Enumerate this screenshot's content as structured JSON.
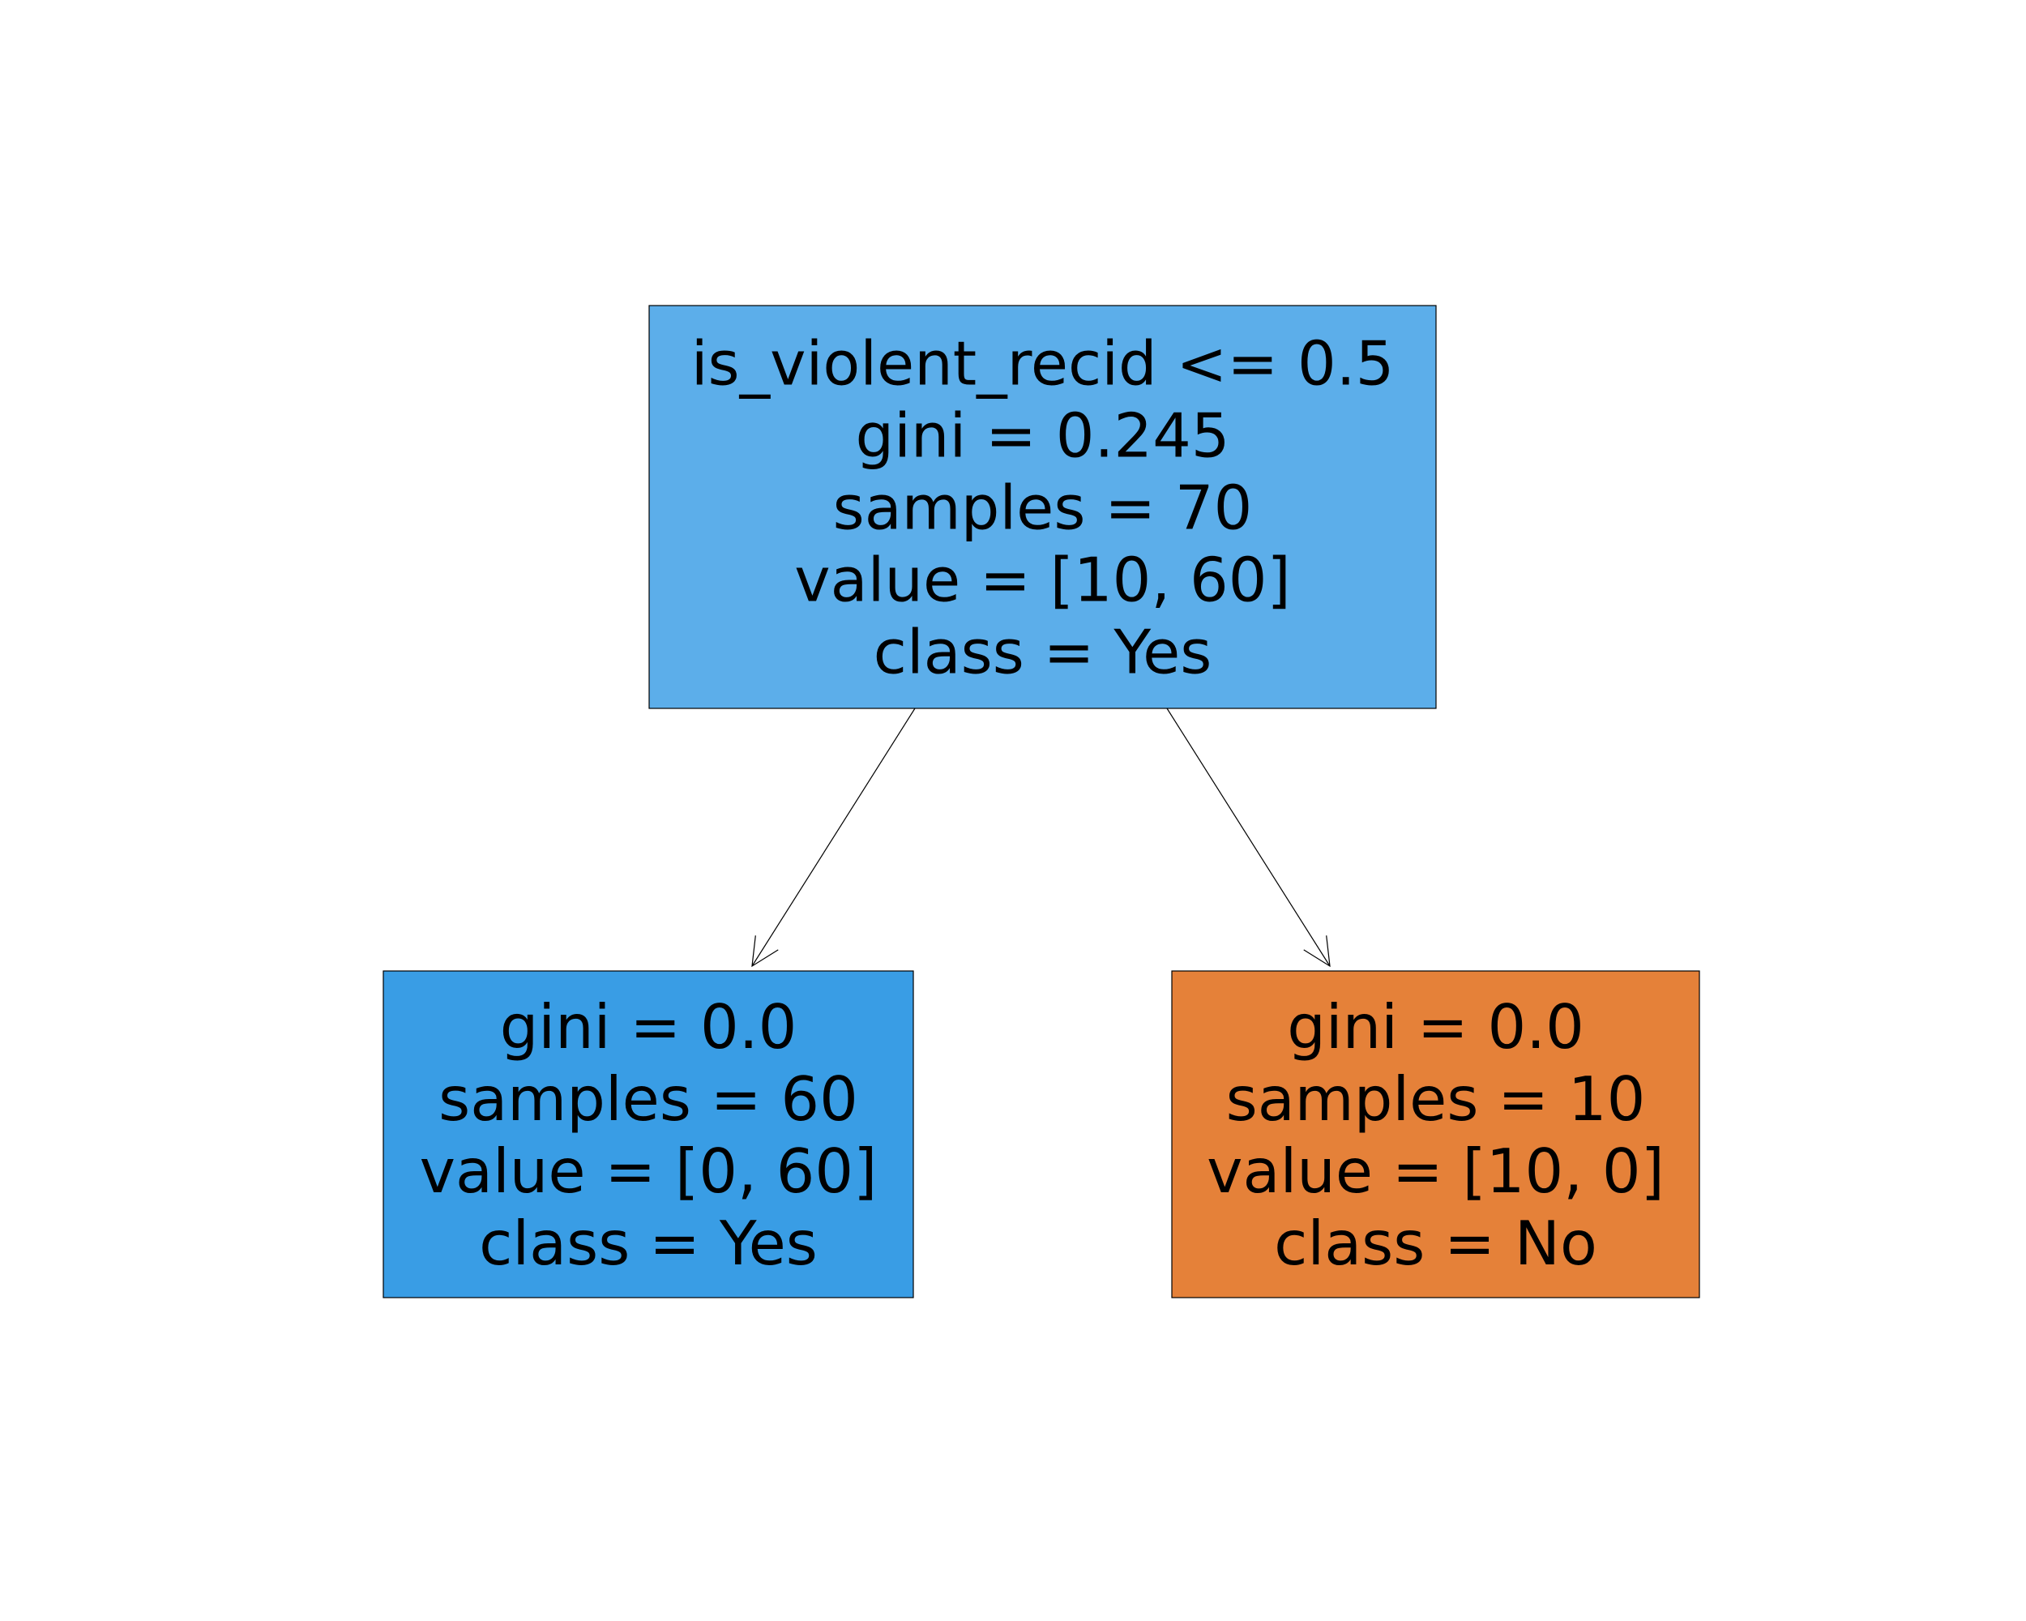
{
  "nodes": [
    {
      "id": "root",
      "lines": [
        "is_violent_recid <= 0.5",
        "gini = 0.245",
        "samples = 70",
        "value = [10, 60]",
        "class = Yes"
      ],
      "fill": "#5caeea"
    },
    {
      "id": "left",
      "lines": [
        "gini = 0.0",
        "samples = 60",
        "value = [0, 60]",
        "class = Yes"
      ],
      "fill": "#399de5"
    },
    {
      "id": "right",
      "lines": [
        "gini = 0.0",
        "samples = 10",
        "value = [10, 0]",
        "class = No"
      ],
      "fill": "#e58139"
    }
  ],
  "edges": [
    {
      "from": "root",
      "to": "left"
    },
    {
      "from": "root",
      "to": "right"
    }
  ]
}
